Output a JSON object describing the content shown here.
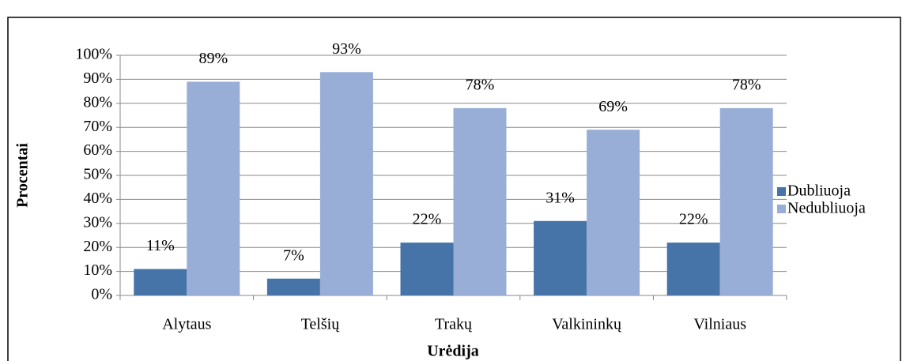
{
  "chart_data": {
    "type": "bar",
    "categories": [
      "Alytaus",
      "Telšių",
      "Trakų",
      "Valkininkų",
      "Vilniaus"
    ],
    "series": [
      {
        "name": "Dubliuoja",
        "color": "#4673a8",
        "values": [
          11,
          7,
          22,
          31,
          22
        ],
        "value_labels": [
          "11%",
          "7%",
          "22%",
          "31%",
          "22%"
        ]
      },
      {
        "name": "Nedubliuoja",
        "color": "#98aed6",
        "values": [
          89,
          93,
          78,
          69,
          78
        ],
        "value_labels": [
          "89%",
          "93%",
          "78%",
          "69%",
          "78%"
        ]
      }
    ],
    "x_label": "Urėdija",
    "y_label": "Procentai",
    "ylim": [
      0,
      100
    ],
    "yticks": [
      {
        "value": 0,
        "label": "0%"
      },
      {
        "value": 10,
        "label": "10%"
      },
      {
        "value": 20,
        "label": "20%"
      },
      {
        "value": 30,
        "label": "30%"
      },
      {
        "value": 40,
        "label": "40%"
      },
      {
        "value": 50,
        "label": "50%"
      },
      {
        "value": 60,
        "label": "60%"
      },
      {
        "value": 70,
        "label": "70%"
      },
      {
        "value": 80,
        "label": "80%"
      },
      {
        "value": 90,
        "label": "90%"
      },
      {
        "value": 100,
        "label": "100%"
      }
    ],
    "grid": true,
    "legend": "right"
  }
}
